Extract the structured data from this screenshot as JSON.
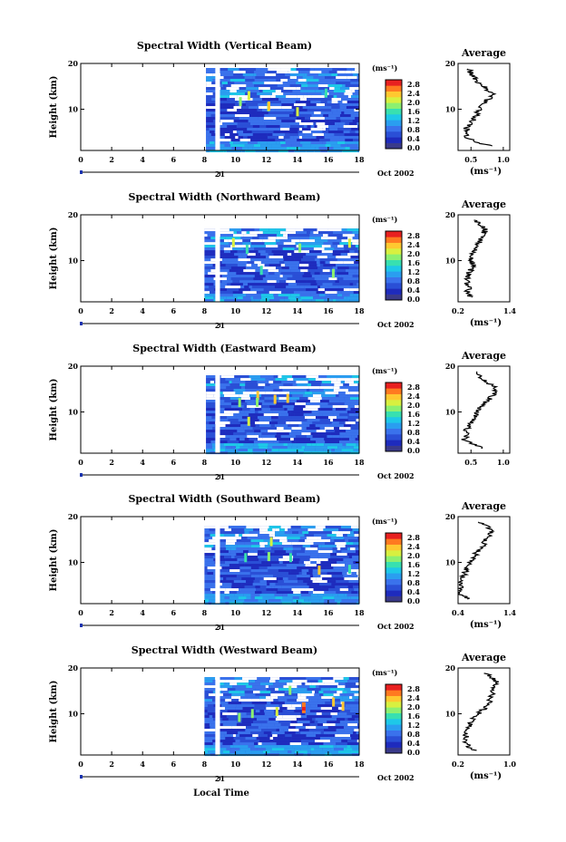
{
  "colors": {
    "bg_blue": "#2a4fd6",
    "dark_blue": "#1a33b0",
    "grey": "#888888",
    "scale": [
      "#3a3a8a",
      "#1e2bbd",
      "#2a4fd6",
      "#3a72ec",
      "#2a9ef0",
      "#1ec8e8",
      "#38e0b0",
      "#8cf070",
      "#d8f040",
      "#ffc830",
      "#ff7a20",
      "#e82020"
    ]
  },
  "common": {
    "xlabel": "Local Time",
    "date_label": "Oct 2002",
    "day_label": "21",
    "unit_label": "(ms⁻¹)",
    "avg_title": "Average",
    "ylabel": "Height (km)"
  },
  "chart_data": [
    {
      "type": "heatmap",
      "title": "Spectral Width (Vertical Beam)",
      "ylabel": "Height (km)",
      "xlabel": "",
      "x_ticks": [
        "0",
        "2",
        "4",
        "6",
        "8",
        "10",
        "12",
        "14",
        "16",
        "18"
      ],
      "y_ticks": [
        "10",
        "20"
      ],
      "xlim": [
        0,
        18
      ],
      "ylim": [
        1,
        20
      ],
      "colorbar": {
        "unit": "(ms⁻¹)",
        "ticks": [
          "0.0",
          "0.4",
          "0.8",
          "1.2",
          "1.6",
          "2.0",
          "2.4",
          "2.8"
        ],
        "range": [
          0,
          2.8
        ]
      },
      "data_start_hour": 8.1,
      "gap_hours": [
        8.7,
        9.0
      ],
      "data_top_km": 19,
      "average": {
        "title": "Average",
        "xlabel": "(ms⁻¹)",
        "x_ticks": [
          "0.5",
          "1.0"
        ],
        "xlim": [
          0.3,
          1.1
        ],
        "y_ticks": [
          "10",
          "20"
        ],
        "profile": [
          [
            0.8,
            2
          ],
          [
            0.55,
            3
          ],
          [
            0.4,
            4
          ],
          [
            0.45,
            5
          ],
          [
            0.42,
            6
          ],
          [
            0.5,
            7
          ],
          [
            0.55,
            8
          ],
          [
            0.6,
            9
          ],
          [
            0.62,
            10
          ],
          [
            0.7,
            11
          ],
          [
            0.75,
            12
          ],
          [
            0.85,
            13
          ],
          [
            0.78,
            14
          ],
          [
            0.7,
            15
          ],
          [
            0.6,
            16
          ],
          [
            0.55,
            17
          ],
          [
            0.5,
            18
          ],
          [
            0.45,
            19
          ]
        ]
      }
    },
    {
      "type": "heatmap",
      "title": "Spectral Width (Northward Beam)",
      "ylabel": "Height (km)",
      "xlabel": "",
      "x_ticks": [
        "0",
        "2",
        "4",
        "6",
        "8",
        "10",
        "12",
        "14",
        "16",
        "18"
      ],
      "y_ticks": [
        "10",
        "20"
      ],
      "xlim": [
        0,
        18
      ],
      "ylim": [
        1,
        20
      ],
      "colorbar": {
        "unit": "(ms⁻¹)",
        "ticks": [
          "0.0",
          "0.4",
          "0.8",
          "1.2",
          "1.6",
          "2.0",
          "2.4",
          "2.8"
        ],
        "range": [
          0,
          2.8
        ]
      },
      "data_start_hour": 8.0,
      "gap_hours": [
        8.7,
        9.0
      ],
      "data_top_km": 17,
      "average": {
        "title": "Average",
        "xlabel": "(ms⁻¹)",
        "x_ticks": [
          "0.2",
          "1.4"
        ],
        "xlim": [
          0.2,
          1.4
        ],
        "y_ticks": [
          "10",
          "20"
        ],
        "profile": [
          [
            0.5,
            2
          ],
          [
            0.4,
            3
          ],
          [
            0.45,
            4
          ],
          [
            0.4,
            5
          ],
          [
            0.42,
            6
          ],
          [
            0.45,
            7
          ],
          [
            0.5,
            8
          ],
          [
            0.55,
            9
          ],
          [
            0.5,
            10
          ],
          [
            0.48,
            11
          ],
          [
            0.55,
            12
          ],
          [
            0.65,
            13
          ],
          [
            0.7,
            14
          ],
          [
            0.75,
            15
          ],
          [
            0.8,
            16
          ],
          [
            0.85,
            17
          ],
          [
            0.7,
            18
          ],
          [
            0.6,
            19
          ]
        ]
      }
    },
    {
      "type": "heatmap",
      "title": "Spectral Width (Eastward Beam)",
      "ylabel": "Height (km)",
      "xlabel": "",
      "x_ticks": [
        "0",
        "2",
        "4",
        "6",
        "8",
        "10",
        "12",
        "14",
        "16",
        "18"
      ],
      "y_ticks": [
        "10",
        "20"
      ],
      "xlim": [
        0,
        18
      ],
      "ylim": [
        1,
        20
      ],
      "colorbar": {
        "unit": "(ms⁻¹)",
        "ticks": [
          "0.0",
          "0.4",
          "0.8",
          "1.2",
          "1.6",
          "2.0",
          "2.4",
          "2.8"
        ],
        "range": [
          0,
          2.8
        ]
      },
      "data_start_hour": 8.1,
      "gap_hours": [
        8.7,
        9.0
      ],
      "data_top_km": 18,
      "average": {
        "title": "Average",
        "xlabel": "",
        "x_ticks": [
          "0.5",
          "1.0"
        ],
        "xlim": [
          0.3,
          1.1
        ],
        "y_ticks": [
          "10",
          "20"
        ],
        "profile": [
          [
            0.7,
            2
          ],
          [
            0.5,
            3
          ],
          [
            0.4,
            4
          ],
          [
            0.45,
            5
          ],
          [
            0.42,
            6
          ],
          [
            0.48,
            7
          ],
          [
            0.52,
            8
          ],
          [
            0.55,
            9
          ],
          [
            0.6,
            10
          ],
          [
            0.65,
            11
          ],
          [
            0.72,
            12
          ],
          [
            0.8,
            13
          ],
          [
            0.85,
            14
          ],
          [
            0.9,
            15
          ],
          [
            0.8,
            16
          ],
          [
            0.7,
            17
          ],
          [
            0.6,
            18
          ],
          [
            0.55,
            19
          ]
        ]
      }
    },
    {
      "type": "heatmap",
      "title": "Spectral Width (Southward Beam)",
      "ylabel": "Height (km)",
      "xlabel": "",
      "x_ticks": [
        "0",
        "2",
        "4",
        "6",
        "8",
        "10",
        "12",
        "14",
        "16",
        "18"
      ],
      "y_ticks": [
        "10",
        "20"
      ],
      "xlim": [
        0,
        18
      ],
      "ylim": [
        1,
        20
      ],
      "colorbar": {
        "unit": "(ms⁻¹)",
        "ticks": [
          "0.0",
          "0.4",
          "0.8",
          "1.2",
          "1.6",
          "2.0",
          "2.4",
          "2.8"
        ],
        "range": [
          0,
          2.8
        ]
      },
      "data_start_hour": 8.0,
      "gap_hours": [
        8.7,
        9.0
      ],
      "data_top_km": 18,
      "average": {
        "title": "Average",
        "xlabel": "(ms⁻¹)",
        "x_ticks": [
          "0.4",
          "1.4"
        ],
        "xlim": [
          0.4,
          1.4
        ],
        "y_ticks": [
          "10",
          "20"
        ],
        "profile": [
          [
            0.6,
            2
          ],
          [
            0.45,
            3
          ],
          [
            0.42,
            4
          ],
          [
            0.48,
            5
          ],
          [
            0.45,
            6
          ],
          [
            0.5,
            7
          ],
          [
            0.55,
            8
          ],
          [
            0.58,
            9
          ],
          [
            0.62,
            10
          ],
          [
            0.7,
            11
          ],
          [
            0.75,
            12
          ],
          [
            0.82,
            13
          ],
          [
            0.9,
            14
          ],
          [
            0.95,
            15
          ],
          [
            1.0,
            16
          ],
          [
            1.05,
            17
          ],
          [
            0.95,
            18
          ],
          [
            0.8,
            19
          ]
        ]
      }
    },
    {
      "type": "heatmap",
      "title": "Spectral Width (Westward Beam)",
      "ylabel": "Height (km)",
      "xlabel": "Local Time",
      "x_ticks": [
        "0",
        "2",
        "4",
        "6",
        "8",
        "10",
        "12",
        "14",
        "16",
        "18"
      ],
      "y_ticks": [
        "10",
        "20"
      ],
      "xlim": [
        0,
        18
      ],
      "ylim": [
        1,
        20
      ],
      "colorbar": {
        "unit": "(ms⁻¹)",
        "ticks": [
          "0.0",
          "0.4",
          "0.8",
          "1.2",
          "1.6",
          "2.0",
          "2.4",
          "2.8"
        ],
        "range": [
          0,
          2.8
        ]
      },
      "data_start_hour": 8.0,
      "gap_hours": [
        8.7,
        9.0
      ],
      "data_top_km": 18,
      "average": {
        "title": "Average",
        "xlabel": "(ms⁻¹)",
        "x_ticks": [
          "0.2",
          "1.0"
        ],
        "xlim": [
          0.2,
          1.0
        ],
        "y_ticks": [
          "10",
          "20"
        ],
        "profile": [
          [
            0.45,
            2
          ],
          [
            0.35,
            3
          ],
          [
            0.3,
            4
          ],
          [
            0.32,
            5
          ],
          [
            0.3,
            6
          ],
          [
            0.35,
            7
          ],
          [
            0.4,
            8
          ],
          [
            0.45,
            9
          ],
          [
            0.5,
            10
          ],
          [
            0.6,
            11
          ],
          [
            0.65,
            12
          ],
          [
            0.7,
            13
          ],
          [
            0.72,
            14
          ],
          [
            0.75,
            15
          ],
          [
            0.78,
            16
          ],
          [
            0.8,
            17
          ],
          [
            0.72,
            18
          ],
          [
            0.6,
            19
          ]
        ]
      }
    }
  ]
}
